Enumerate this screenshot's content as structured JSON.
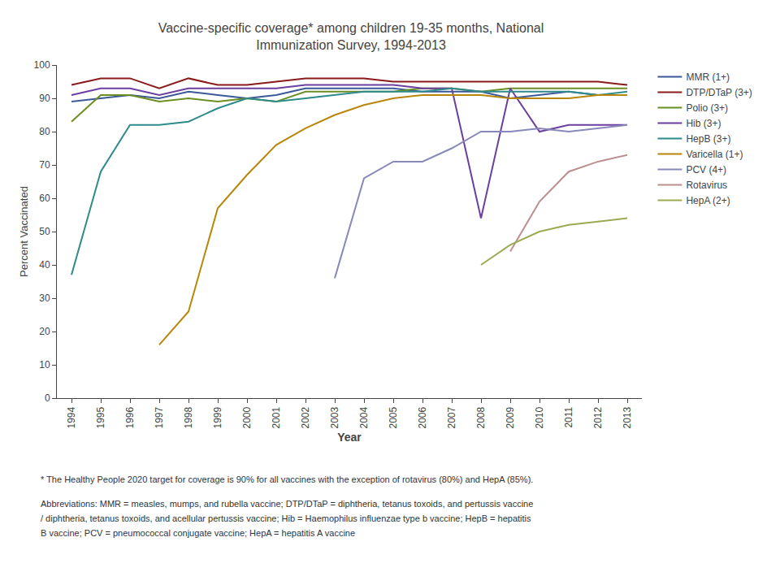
{
  "chart_data": {
    "type": "line",
    "title": "Vaccine-specific coverage* among children 19-35 months, National\nImmunization Survey, 1994-2013",
    "xlabel": "Year",
    "ylabel": "Percent Vaccinated",
    "x": [
      1994,
      1995,
      1996,
      1997,
      1998,
      1999,
      2000,
      2001,
      2002,
      2003,
      2004,
      2005,
      2006,
      2007,
      2008,
      2009,
      2010,
      2011,
      2012,
      2013
    ],
    "series": [
      {
        "name": "MMR (1+)",
        "color": "#3B5998",
        "values": [
          89,
          90,
          91,
          90,
          92,
          91,
          90,
          91,
          93,
          93,
          93,
          93,
          92,
          92,
          92,
          90,
          91,
          92,
          91,
          91
        ]
      },
      {
        "name": "DTP/DTaP (3+)",
        "color": "#8B1A1A",
        "values": [
          94,
          96,
          96,
          93,
          96,
          94,
          94,
          95,
          96,
          96,
          96,
          95,
          95,
          95,
          95,
          95,
          95,
          95,
          95,
          94
        ]
      },
      {
        "name": "Polio (3+)",
        "color": "#6B8E23",
        "values": [
          83,
          91,
          91,
          89,
          90,
          89,
          90,
          89,
          92,
          92,
          92,
          92,
          93,
          93,
          92,
          93,
          93,
          93,
          93,
          93
        ]
      },
      {
        "name": "Hib (3+)",
        "color": "#6B3FA0",
        "values": [
          91,
          93,
          93,
          91,
          93,
          93,
          93,
          93,
          94,
          94,
          94,
          94,
          93,
          93,
          54,
          93,
          80,
          82,
          82,
          82
        ]
      },
      {
        "name": "HepB (3+)",
        "color": "#2E8B8B",
        "values": [
          37,
          68,
          82,
          82,
          83,
          87,
          90,
          89,
          90,
          91,
          92,
          92,
          92,
          93,
          92,
          92,
          92,
          92,
          91,
          92
        ]
      },
      {
        "name": "Varicella (1+)",
        "color": "#B8860B",
        "values": [
          null,
          null,
          null,
          16,
          26,
          57,
          67,
          76,
          81,
          85,
          88,
          90,
          91,
          91,
          91,
          90,
          90,
          90,
          91,
          91
        ]
      },
      {
        "name": "PCV (4+)",
        "color": "#8888BB",
        "values": [
          null,
          null,
          null,
          null,
          null,
          null,
          null,
          null,
          null,
          36,
          66,
          71,
          71,
          75,
          80,
          80,
          81,
          80,
          81,
          82
        ]
      },
      {
        "name": "Rotavirus",
        "color": "#BC8F8F",
        "values": [
          null,
          null,
          null,
          null,
          null,
          null,
          null,
          null,
          null,
          null,
          null,
          null,
          null,
          null,
          null,
          44,
          59,
          68,
          71,
          73
        ]
      },
      {
        "name": "HepA (2+)",
        "color": "#9AAB52",
        "values": [
          null,
          null,
          null,
          null,
          null,
          null,
          null,
          null,
          null,
          null,
          null,
          null,
          null,
          null,
          40,
          46,
          50,
          52,
          53,
          54
        ]
      }
    ],
    "xlim": [
      1993.5,
      2013.5
    ],
    "xticks": [
      1994,
      1995,
      1996,
      1997,
      1998,
      1999,
      2000,
      2001,
      2002,
      2003,
      2004,
      2005,
      2006,
      2007,
      2008,
      2009,
      2010,
      2011,
      2012,
      2013
    ],
    "ylim": [
      0,
      100
    ],
    "yticks": [
      0,
      10,
      20,
      30,
      40,
      50,
      60,
      70,
      80,
      90,
      100
    ],
    "grid": false,
    "annotations": [
      "* The Healthy People 2020 target for coverage is 90% for all vaccines with the exception of rotavirus (80%) and HepA (85%).",
      "Abbreviations: MMR = measles, mumps, and rubella vaccine; DTP/DTaP = diphtheria, tetanus toxoids, and pertussis vaccine",
      "/ diphtheria, tetanus toxoids, and acellular pertussis vaccine; Hib = Haemophilus influenzae type b vaccine; HepB = hepatitis",
      "B vaccine; PCV = pneumococcal conjugate vaccine; HepA = hepatitis A vaccine"
    ]
  }
}
